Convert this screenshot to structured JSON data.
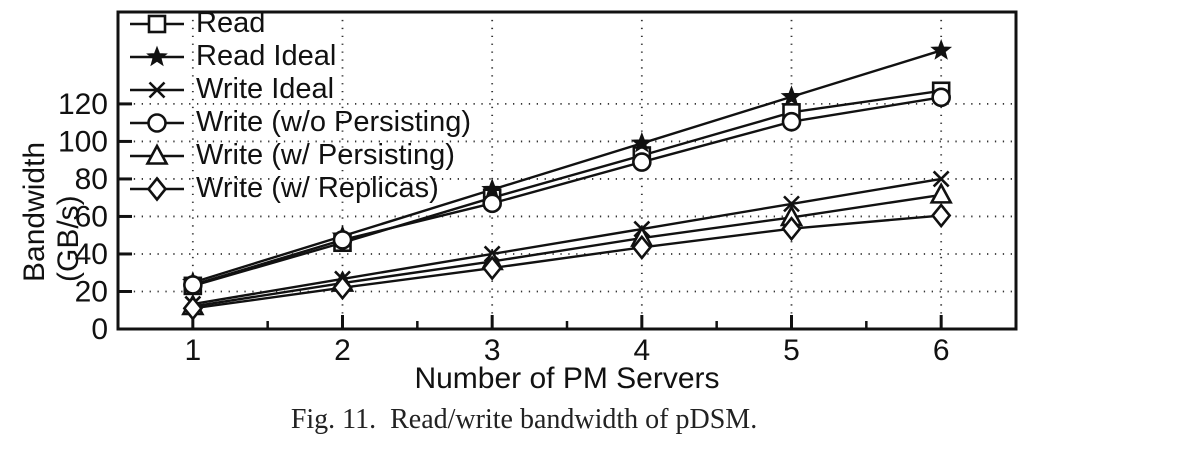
{
  "caption": "Fig. 11.  Read/write bandwidth of pDSM.",
  "chart_data": {
    "type": "line",
    "title": "",
    "xlabel": "Number of PM Servers",
    "ylabel": "Bandwidth (GB/s)",
    "x": [
      1,
      2,
      3,
      4,
      5,
      6
    ],
    "xlim": [
      0.5,
      6.5
    ],
    "ylim": [
      0,
      169
    ],
    "x_ticks": [
      1,
      2,
      3,
      4,
      5,
      6
    ],
    "x_minor_ticks": [
      1.5,
      2.5,
      3.5,
      4.5,
      5.5
    ],
    "y_ticks": [
      0,
      20,
      40,
      60,
      80,
      100,
      120
    ],
    "grid": "dotted at major ticks",
    "legend_position": "top-left inside plot",
    "line_color": "#111111",
    "background_color": "#ffffff",
    "series": [
      {
        "name": "Read",
        "marker": "square",
        "values": [
          23.0,
          46.0,
          70.0,
          92.5,
          115.5,
          127.0
        ]
      },
      {
        "name": "Read Ideal",
        "marker": "star",
        "values": [
          24.8,
          49.5,
          74.3,
          99.0,
          123.8,
          148.5
        ]
      },
      {
        "name": "Write Ideal",
        "marker": "x",
        "values": [
          13.3,
          26.7,
          40.0,
          53.3,
          66.7,
          80.0
        ]
      },
      {
        "name": "Write (w/o Persisting)",
        "marker": "circle",
        "values": [
          23.5,
          47.5,
          67.0,
          89.0,
          110.5,
          123.5
        ]
      },
      {
        "name": "Write (w/ Persisting)",
        "marker": "triangle",
        "values": [
          12.0,
          24.5,
          36.0,
          48.5,
          59.5,
          71.5
        ]
      },
      {
        "name": "Write (w/ Replicas)",
        "marker": "diamond",
        "values": [
          11.0,
          22.0,
          32.5,
          43.5,
          53.5,
          60.5
        ]
      }
    ]
  }
}
